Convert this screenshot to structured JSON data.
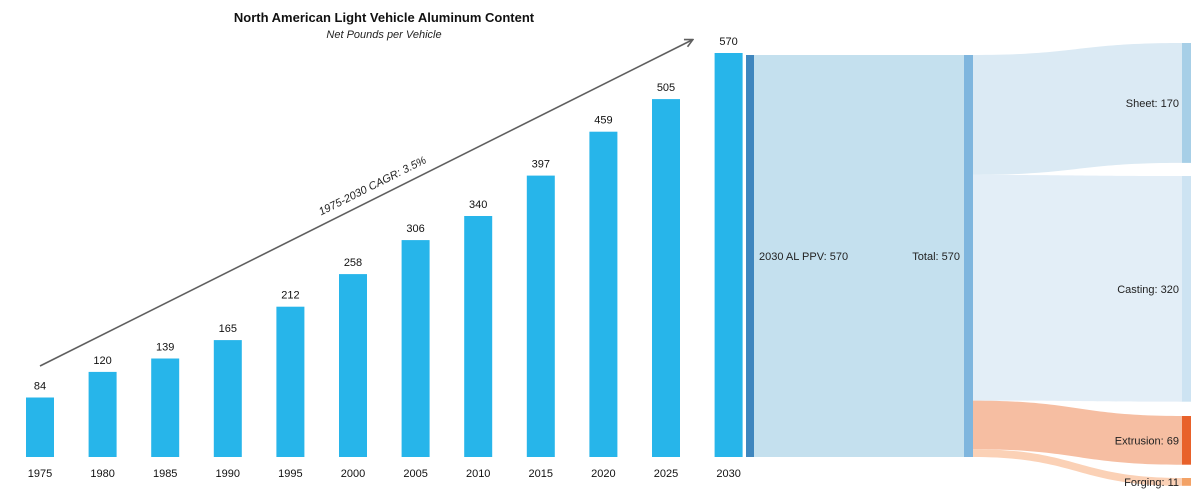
{
  "chart_data": [
    {
      "type": "bar",
      "title": "North American Light Vehicle Aluminum Content",
      "subtitle": "Net Pounds per Vehicle",
      "categories": [
        "1975",
        "1980",
        "1985",
        "1990",
        "1995",
        "2000",
        "2005",
        "2010",
        "2015",
        "2020",
        "2025",
        "2030"
      ],
      "values": [
        84,
        120,
        139,
        165,
        212,
        258,
        306,
        340,
        397,
        459,
        505,
        570
      ],
      "ylim": [
        0,
        570
      ],
      "grid": false,
      "annotation": "1975-2030 CAGR: 3.5%",
      "colors": {
        "bar": "#27b5ea",
        "arrow": "#5f5f5f"
      }
    },
    {
      "type": "sankey",
      "source": {
        "label": "2030 AL PPV: 570",
        "value": 570
      },
      "total": {
        "label": "Total: 570",
        "value": 570
      },
      "targets": [
        {
          "label": "Sheet: 170",
          "value": 170
        },
        {
          "label": "Casting: 320",
          "value": 320
        },
        {
          "label": "Extrusion: 69",
          "value": 69
        },
        {
          "label": "Forging: 11",
          "value": 11
        }
      ],
      "colors": {
        "source_node": "#3f86be",
        "total_node": "#7fb6de",
        "main_flow": "#c4e0ee",
        "sheet_flow": "#dbeaf4",
        "casting_flow": "#e3eef7",
        "extrusion_flow": "#f6bea2",
        "forging_flow": "#fbd1b6",
        "sheet_node": "#a7cfe7",
        "casting_node": "#cde3f2",
        "extrusion_node": "#e8612a",
        "forging_node": "#f3a266"
      }
    }
  ]
}
